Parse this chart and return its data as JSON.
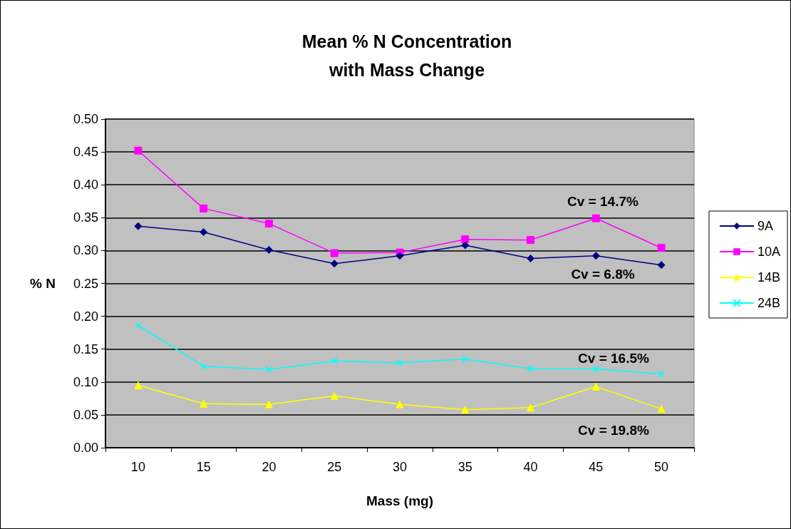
{
  "chart_data": {
    "type": "line",
    "title": "Mean % N Concentration\nwith Mass Change",
    "xlabel": "Mass (mg)",
    "ylabel": "% N",
    "categories": [
      "10",
      "15",
      "20",
      "25",
      "30",
      "35",
      "40",
      "45",
      "50"
    ],
    "series": [
      {
        "name": "9A",
        "color": "#000080",
        "marker": "diamond",
        "values": [
          0.337,
          0.328,
          0.301,
          0.28,
          0.292,
          0.308,
          0.288,
          0.292,
          0.278
        ]
      },
      {
        "name": "10A",
        "color": "#ff00ff",
        "marker": "square",
        "values": [
          0.452,
          0.364,
          0.341,
          0.296,
          0.297,
          0.317,
          0.316,
          0.349,
          0.304
        ]
      },
      {
        "name": "14B",
        "color": "#ffff00",
        "marker": "triangle",
        "values": [
          0.095,
          0.067,
          0.066,
          0.079,
          0.066,
          0.058,
          0.061,
          0.093,
          0.059
        ]
      },
      {
        "name": "24B",
        "color": "#00ffff",
        "marker": "cross",
        "values": [
          0.186,
          0.124,
          0.119,
          0.132,
          0.129,
          0.135,
          0.12,
          0.12,
          0.112
        ]
      }
    ],
    "ylim": [
      0,
      0.5
    ],
    "yticks": [
      {
        "value": 0,
        "label": "0.00"
      },
      0.05,
      {
        "value": 0.1,
        "label": "0.10"
      },
      0.15,
      {
        "value": 0.2,
        "label": "0.20"
      },
      0.25,
      {
        "value": 0.3,
        "label": "0.30"
      },
      0.35,
      {
        "value": 0.4,
        "label": "0.40"
      },
      0.45,
      {
        "value": 0.5,
        "label": "0.50"
      }
    ],
    "grid": "y",
    "legend": "right",
    "annotations": [
      "Cv = 14.7%",
      "Cv = 6.8%",
      "Cv = 16.5%",
      "Cv = 19.8%"
    ]
  }
}
